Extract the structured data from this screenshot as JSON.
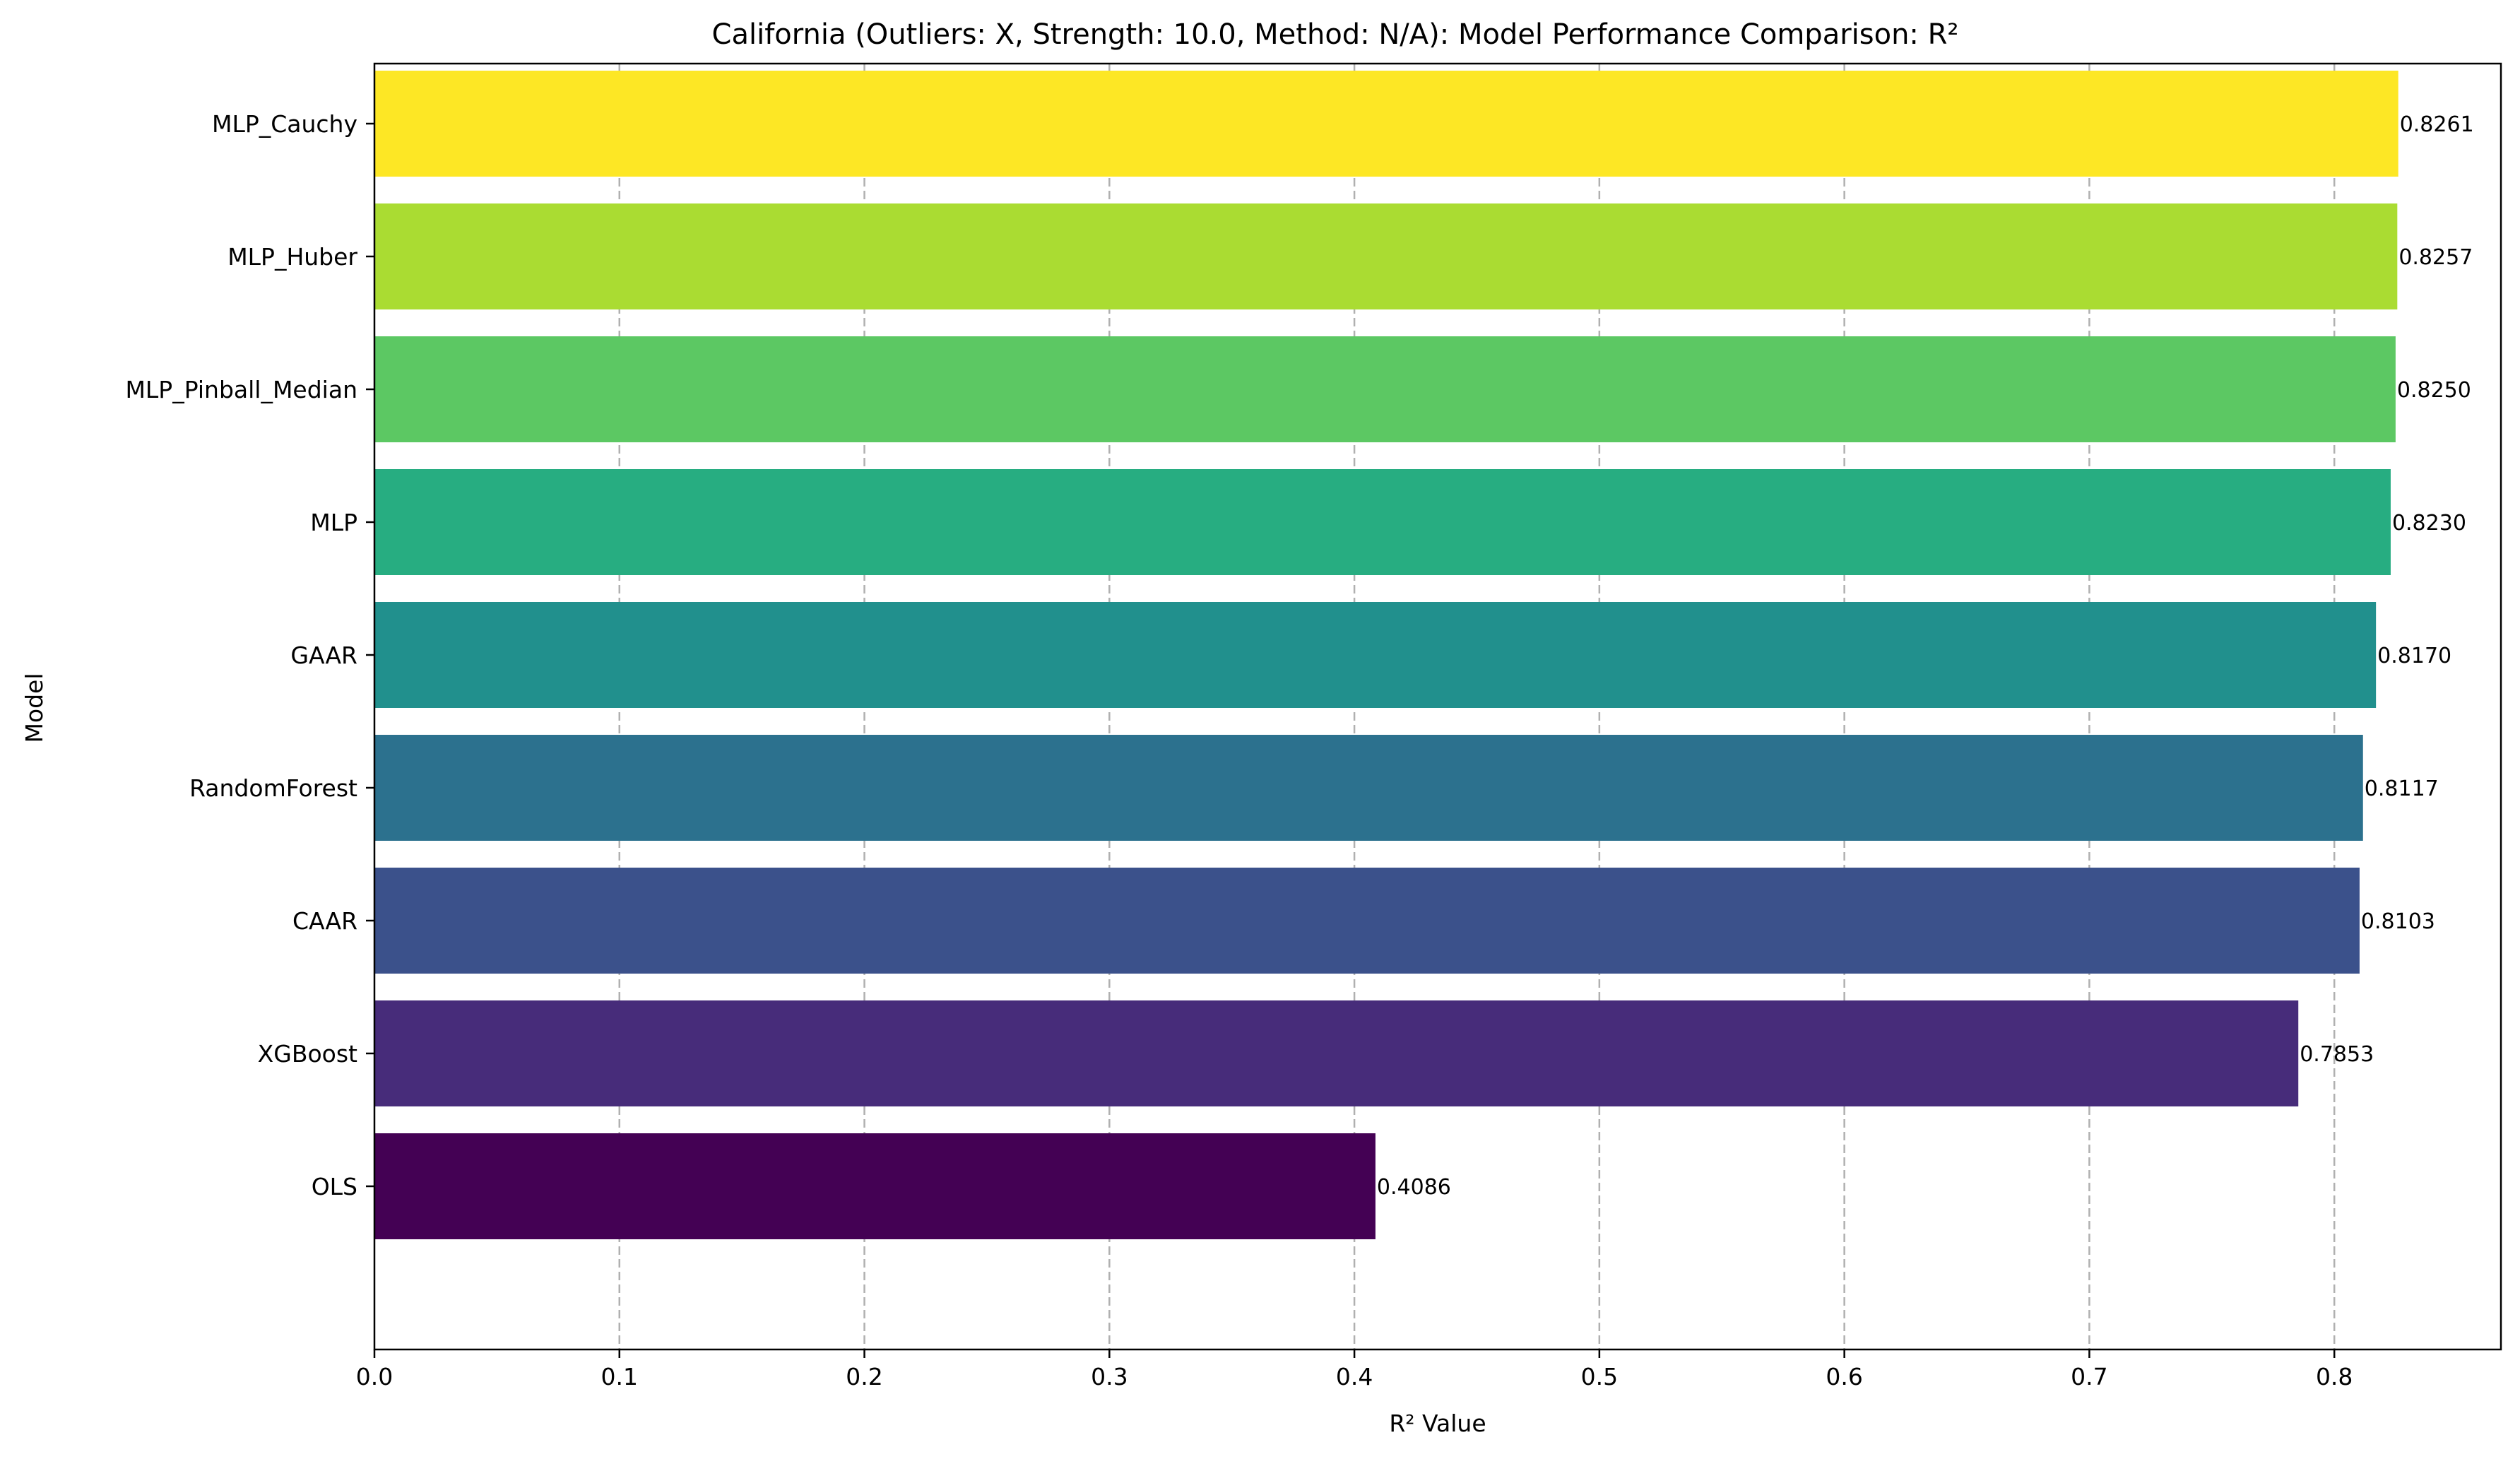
{
  "chart_data": {
    "type": "bar",
    "orientation": "horizontal",
    "title": "California (Outliers: X, Strength: 10.0, Method: N/A): Model Performance Comparison: R²",
    "xlabel": "R² Value",
    "ylabel": "Model",
    "xlim": [
      0.0,
      0.868
    ],
    "x_ticks": [
      "0.0",
      "0.1",
      "0.2",
      "0.3",
      "0.4",
      "0.5",
      "0.6",
      "0.7",
      "0.8"
    ],
    "grid": "vertical dashed",
    "categories": [
      "OLS",
      "XGBoost",
      "CAAR",
      "RandomForest",
      "GAAR",
      "MLP",
      "MLP_Pinball_Median",
      "MLP_Huber",
      "MLP_Cauchy"
    ],
    "values": [
      0.4086,
      0.7853,
      0.8103,
      0.8117,
      0.817,
      0.823,
      0.825,
      0.8257,
      0.8261
    ],
    "data_labels": [
      "0.4086",
      "0.7853",
      "0.8103",
      "0.8117",
      "0.8170",
      "0.8230",
      "0.8250",
      "0.8257",
      "0.8261"
    ],
    "colors": [
      "#440154",
      "#472c7a",
      "#3b518b",
      "#2c718e",
      "#21908d",
      "#27ad81",
      "#5cc863",
      "#aadc32",
      "#fde725"
    ]
  }
}
